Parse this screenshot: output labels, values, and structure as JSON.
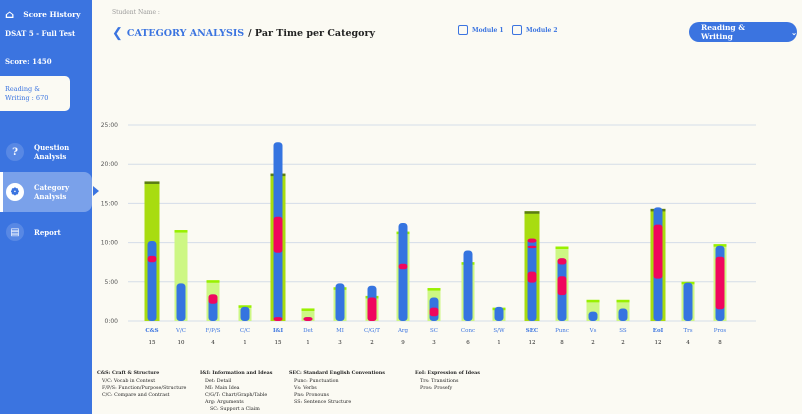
{
  "sidebar": {
    "home_label": "Score History",
    "test_name": "DSAT 5 - Full Test",
    "score": "Score: 1450",
    "section_score": "Reading & Writing : 670",
    "nav": [
      {
        "label": "Question Analysis",
        "icon": "search-question-icon",
        "active": false
      },
      {
        "label": "Category Analysis",
        "icon": "category-analysis-icon",
        "active": true
      },
      {
        "label": "Report",
        "icon": "report-document-icon",
        "active": false
      }
    ]
  },
  "header": {
    "student_label": "Student Name :",
    "title_link": "CATEGORY ANALYSIS",
    "title_rest": "/ Par Time per Category",
    "module1": "Module 1",
    "module2": "Module 2",
    "section_select": "Reading & Writing"
  },
  "colors": {
    "primary": "#3b74e0",
    "main_bar": "#a8dc10",
    "main_bar_top": "#5b7d12",
    "sub_bar": "#cdf784",
    "sub_bar_top": "#99f000",
    "correct": "#3574e0",
    "incorrect": "#f0065e"
  },
  "chart_data": {
    "type": "bar",
    "ylim": [
      0,
      25
    ],
    "yticks": [
      "0:00",
      "5:00",
      "10:00",
      "15:00",
      "20:00",
      "25:00"
    ],
    "grid": true,
    "categories": [
      {
        "label": "C&S",
        "count": "15",
        "main": true,
        "par": 17.8,
        "time": 10.2,
        "incorrect": [
          [
            7.5,
            8.3
          ]
        ]
      },
      {
        "label": "V/C",
        "count": "10",
        "main": false,
        "par": 11.6,
        "time": 4.8,
        "incorrect": []
      },
      {
        "label": "F/P/S",
        "count": "4",
        "main": false,
        "par": 5.2,
        "time": 3.4,
        "incorrect": [
          [
            2.2,
            3.4
          ]
        ]
      },
      {
        "label": "C/C",
        "count": "1",
        "main": false,
        "par": 2.0,
        "time": 1.8,
        "incorrect": []
      },
      {
        "label": "I&I",
        "count": "15",
        "main": true,
        "par": 18.8,
        "time": 22.8,
        "incorrect": [
          [
            0,
            0.5
          ],
          [
            8.7,
            13.3
          ]
        ]
      },
      {
        "label": "Det",
        "count": "1",
        "main": false,
        "par": 1.6,
        "time": 0.5,
        "incorrect": [
          [
            0,
            0.5
          ]
        ]
      },
      {
        "label": "MI",
        "count": "3",
        "main": false,
        "par": 4.3,
        "time": 4.8,
        "incorrect": []
      },
      {
        "label": "C/G/T",
        "count": "2",
        "main": false,
        "par": 3.2,
        "time": 4.5,
        "incorrect": [
          [
            0,
            3.0
          ]
        ]
      },
      {
        "label": "Arg",
        "count": "9",
        "main": false,
        "par": 11.4,
        "time": 12.5,
        "incorrect": [
          [
            6.6,
            7.3
          ]
        ]
      },
      {
        "label": "SC",
        "count": "3",
        "main": false,
        "par": 4.2,
        "time": 3.0,
        "incorrect": [
          [
            0.6,
            1.7
          ]
        ]
      },
      {
        "label": "Conc",
        "count": "6",
        "main": false,
        "par": 7.5,
        "time": 9.0,
        "incorrect": []
      },
      {
        "label": "S/W",
        "count": "1",
        "main": false,
        "par": 1.7,
        "time": 1.8,
        "incorrect": []
      },
      {
        "label": "SEC",
        "count": "12",
        "main": true,
        "par": 14.0,
        "time": 10.5,
        "incorrect": [
          [
            4.9,
            6.3
          ],
          [
            9.3,
            9.6
          ],
          [
            10.0,
            10.5
          ]
        ]
      },
      {
        "label": "Punc",
        "count": "8",
        "main": false,
        "par": 9.5,
        "time": 8.0,
        "incorrect": [
          [
            3.3,
            5.7
          ],
          [
            7.2,
            8.0
          ]
        ]
      },
      {
        "label": "Vs",
        "count": "2",
        "main": false,
        "par": 2.7,
        "time": 1.2,
        "incorrect": []
      },
      {
        "label": "SS",
        "count": "2",
        "main": false,
        "par": 2.7,
        "time": 1.6,
        "incorrect": []
      },
      {
        "label": "EoI",
        "count": "12",
        "main": true,
        "par": 14.3,
        "time": 14.5,
        "incorrect": [
          [
            5.4,
            12.3
          ]
        ]
      },
      {
        "label": "Trs",
        "count": "4",
        "main": false,
        "par": 5.0,
        "time": 4.9,
        "incorrect": []
      },
      {
        "label": "Pros",
        "count": "8",
        "main": false,
        "par": 9.8,
        "time": 9.6,
        "incorrect": [
          [
            1.5,
            8.2
          ]
        ]
      }
    ]
  },
  "legend": [
    {
      "title": "C&S: Craft & Structure",
      "items": [
        "V/C: Vocab in Context",
        "F/P/S: Function/Purpose/Structure",
        "C/C: Compare and Contrast"
      ]
    },
    {
      "title": "I&I: Information and Ideas",
      "items": [
        "Det: Detail",
        "MI: Main Idea",
        "C/G/T: Chart/Graph/Table",
        "Arg: Arguments",
        "SC: Support a Claim"
      ]
    },
    {
      "title": "SEC: Standard English Conventions",
      "items": [
        "Punc: Punctuation",
        "Vs: Verbs",
        "Pns: Pronouns",
        "SS: Sentence Structure"
      ]
    },
    {
      "title": "EoI: Expression of Ideas",
      "items": [
        "Trs: Transitions",
        "Pros: Prosefy"
      ]
    }
  ]
}
